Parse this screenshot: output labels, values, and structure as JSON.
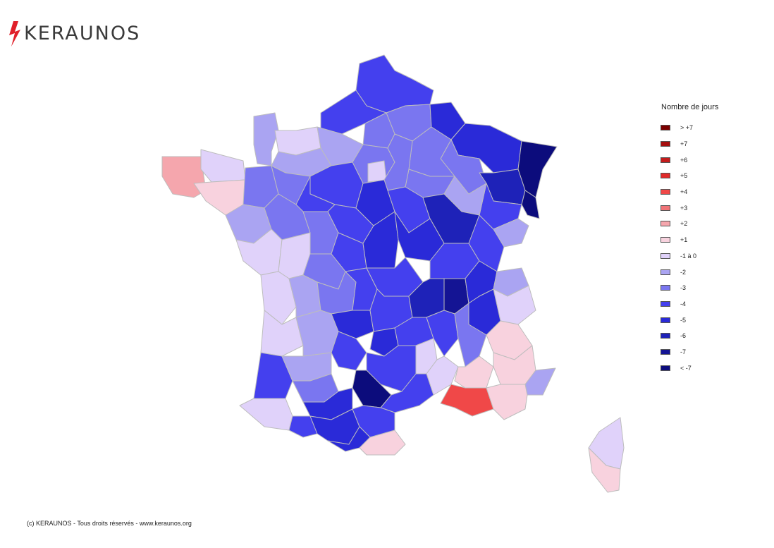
{
  "brand": {
    "name": "KERAUNOS",
    "accent": "#e0202a"
  },
  "legend": {
    "title": "Nombre de jours",
    "items": [
      {
        "label": "> +7",
        "color": "#7b0000"
      },
      {
        "label": "+7",
        "color": "#a50e0e"
      },
      {
        "label": "+6",
        "color": "#c41c1c"
      },
      {
        "label": "+5",
        "color": "#e02a2a"
      },
      {
        "label": "+4",
        "color": "#f04848"
      },
      {
        "label": "+3",
        "color": "#f07478"
      },
      {
        "label": "+2",
        "color": "#f5a6ad"
      },
      {
        "label": "+1",
        "color": "#f8d2de"
      },
      {
        "label": "-1 à 0",
        "color": "#e0d2fa"
      },
      {
        "label": "-2",
        "color": "#aaa4f2"
      },
      {
        "label": "-3",
        "color": "#7a76f0"
      },
      {
        "label": "-4",
        "color": "#4440ee"
      },
      {
        "label": "-5",
        "color": "#2a2ad8"
      },
      {
        "label": "-6",
        "color": "#1e22b8"
      },
      {
        "label": "-7",
        "color": "#141494"
      },
      {
        "label": "< -7",
        "color": "#0c0c7c"
      }
    ]
  },
  "footer": {
    "text": "(c) KERAUNOS - Tous droits réservés - www.keraunos.org"
  }
}
